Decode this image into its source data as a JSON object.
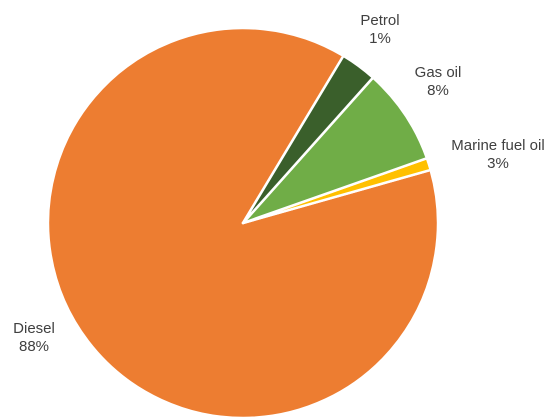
{
  "chart_data": {
    "type": "pie",
    "title": "",
    "start_angle_deg": 59,
    "direction": "counterclockwise",
    "slices": [
      {
        "label": "Diesel",
        "value": 88,
        "value_label": "88%",
        "color": "#ED7D31"
      },
      {
        "label": "Petrol",
        "value": 1,
        "value_label": "1%",
        "color": "#FFC000"
      },
      {
        "label": "Gas oil",
        "value": 8,
        "value_label": "8%",
        "color": "#70AD47"
      },
      {
        "label": "Marine fuel oil",
        "value": 3,
        "value_label": "3%",
        "color": "#3A5F2B"
      }
    ],
    "slice_border_color": "#FFFFFF",
    "legend": "none",
    "label_position": "outside"
  }
}
